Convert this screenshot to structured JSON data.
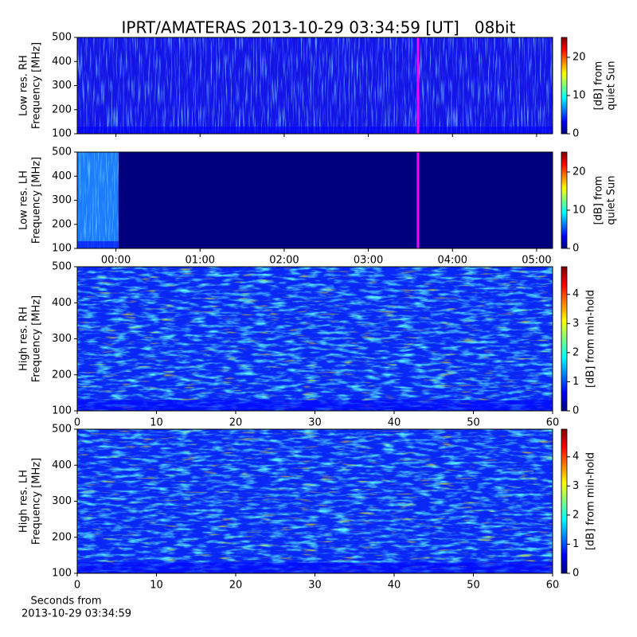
{
  "title": "IPRT/AMATERAS 2013-10-29 03:34:59 [UT]   08bit",
  "chart_data": [
    {
      "type": "heatmap",
      "colormap": "jet",
      "ylabel": [
        "Low res. RH",
        "Frequency [MHz]"
      ],
      "xlim": [
        -0.46,
        5.19
      ],
      "xticks": [
        0,
        1,
        2,
        3,
        4,
        5
      ],
      "ylim": [
        100,
        500
      ],
      "yticks": [
        100,
        200,
        300,
        400,
        500
      ],
      "clim": [
        0,
        25.2
      ],
      "cticks": [
        0,
        10,
        20
      ],
      "clabel": [
        "[dB] from",
        "quiet Sun"
      ],
      "marker": {
        "x": 3.59,
        "color": "#ff00ff"
      }
    },
    {
      "type": "heatmap",
      "colormap": "jet",
      "ylabel": [
        "Low res. LH",
        "Frequency [MHz]"
      ],
      "xlim": [
        -0.46,
        5.19
      ],
      "xticks": [
        {
          "value": 0,
          "label": "00:00"
        },
        {
          "value": 1,
          "label": "01:00"
        },
        {
          "value": 2,
          "label": "02:00"
        },
        {
          "value": 3,
          "label": "03:00"
        },
        {
          "value": 4,
          "label": "04:00"
        },
        {
          "value": 5,
          "label": "05:00"
        }
      ],
      "ylim": [
        100,
        500
      ],
      "yticks": [
        100,
        200,
        300,
        400,
        500
      ],
      "clim": [
        0,
        25.2
      ],
      "cticks": [
        0,
        10,
        20
      ],
      "clabel": [
        "[dB] from",
        "quiet Sun"
      ],
      "data_end": 0.03,
      "marker": {
        "x": 3.59,
        "color": "#ff00ff"
      }
    },
    {
      "type": "heatmap",
      "colormap": "jet",
      "ylabel": [
        "High res. RH",
        "Frequency [MHz]"
      ],
      "xlim": [
        0,
        60
      ],
      "xticks": [
        0,
        10,
        20,
        30,
        40,
        50,
        60
      ],
      "ylim": [
        100,
        500
      ],
      "yticks": [
        100,
        200,
        300,
        400,
        500
      ],
      "clim": [
        0,
        4.95
      ],
      "cticks": [
        0,
        1,
        2,
        3,
        4
      ],
      "clabel": [
        "[dB] from min-hold"
      ]
    },
    {
      "type": "heatmap",
      "colormap": "jet",
      "ylabel": [
        "High res. LH",
        "Frequency [MHz]"
      ],
      "xlim": [
        0,
        60
      ],
      "xticks": [
        0,
        10,
        20,
        30,
        40,
        50,
        60
      ],
      "ylim": [
        100,
        500
      ],
      "yticks": [
        100,
        200,
        300,
        400,
        500
      ],
      "clim": [
        0,
        4.95
      ],
      "cticks": [
        0,
        1,
        2,
        3,
        4
      ],
      "clabel": [
        "[dB] from min-hold"
      ],
      "xlabel": [
        "Seconds from",
        "2013-10-29 03:34:59"
      ]
    }
  ]
}
